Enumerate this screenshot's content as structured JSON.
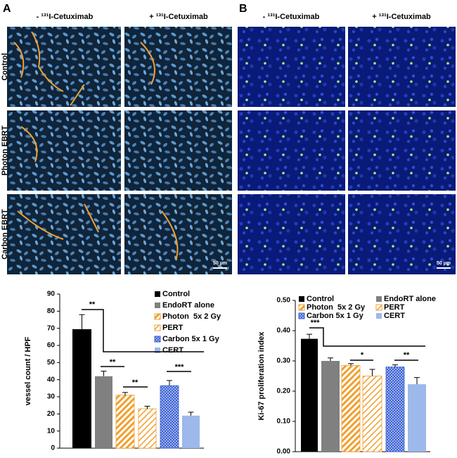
{
  "panels": [
    {
      "label": "A",
      "columns": [
        "- ¹³¹I-Cetuximab",
        "+ ¹³¹I-Cetuximab"
      ],
      "rows": [
        "Control",
        "Photon EBRT",
        "Carbon EBRT"
      ],
      "scale_bar": "50 µm"
    },
    {
      "label": "B",
      "columns": [
        "- ¹³¹I-Cetuximab",
        "+ ¹³¹I-Cetuximab"
      ],
      "scale_bar": "50 µm"
    }
  ],
  "chart_data": [
    {
      "type": "bar",
      "ylabel": "vessel count / HPF",
      "ylim": [
        0,
        90
      ],
      "yticks": [
        0,
        10,
        20,
        30,
        40,
        50,
        60,
        70,
        80,
        90
      ],
      "series": [
        {
          "name": "Control",
          "color": "#000000",
          "pattern": "solid",
          "values": [
            69.5
          ],
          "errors": [
            8.5
          ]
        },
        {
          "name": "EndoRT alone",
          "color": "#808080",
          "pattern": "solid",
          "values": [
            42
          ],
          "errors": [
            3
          ]
        },
        {
          "name": "Photon  5x 2 Gy",
          "color": "#f0a030",
          "pattern": "hatch",
          "values": [
            31
          ],
          "errors": [
            1.5
          ]
        },
        {
          "name": "PERT",
          "color": "#f0a030",
          "pattern": "hatch-light",
          "values": [
            23
          ],
          "errors": [
            1.5
          ]
        },
        {
          "name": "Carbon 5x 1 Gy",
          "color": "#3a5fd0",
          "pattern": "check",
          "values": [
            36.5
          ],
          "errors": [
            3
          ]
        },
        {
          "name": "CERT",
          "color": "#9db8ea",
          "pattern": "solid",
          "values": [
            19
          ],
          "errors": [
            2
          ]
        }
      ],
      "annotations": [
        "**",
        "**",
        "**",
        "***"
      ]
    },
    {
      "type": "bar",
      "ylabel": "Ki-67 proliferation index",
      "ylim": [
        0,
        0.5
      ],
      "yticks": [
        {
          "value": 0,
          "label": "0.00"
        },
        {
          "value": 0.1,
          "label": "0.10"
        },
        {
          "value": 0.2,
          "label": "0.20"
        },
        {
          "value": 0.3,
          "label": "0.30"
        },
        {
          "value": 0.4,
          "label": "0.40"
        },
        {
          "value": 0.5,
          "label": "0.50"
        }
      ],
      "series": [
        {
          "name": "Control",
          "color": "#000000",
          "pattern": "solid",
          "values": [
            0.373
          ],
          "errors": [
            0.015
          ]
        },
        {
          "name": "EndoRT alone",
          "color": "#808080",
          "pattern": "solid",
          "values": [
            0.3
          ],
          "errors": [
            0.01
          ]
        },
        {
          "name": "Photon  5x 2 Gy",
          "color": "#f0a030",
          "pattern": "hatch",
          "values": [
            0.285
          ],
          "errors": [
            0.006
          ]
        },
        {
          "name": "PERT",
          "color": "#f0a030",
          "pattern": "hatch-light",
          "values": [
            0.25
          ],
          "errors": [
            0.022
          ]
        },
        {
          "name": "Carbon 5x 1 Gy",
          "color": "#3a5fd0",
          "pattern": "check",
          "values": [
            0.28
          ],
          "errors": [
            0.007
          ]
        },
        {
          "name": "CERT",
          "color": "#9db8ea",
          "pattern": "solid",
          "values": [
            0.223
          ],
          "errors": [
            0.022
          ]
        }
      ],
      "annotations": [
        "***",
        "*",
        "**"
      ]
    }
  ]
}
